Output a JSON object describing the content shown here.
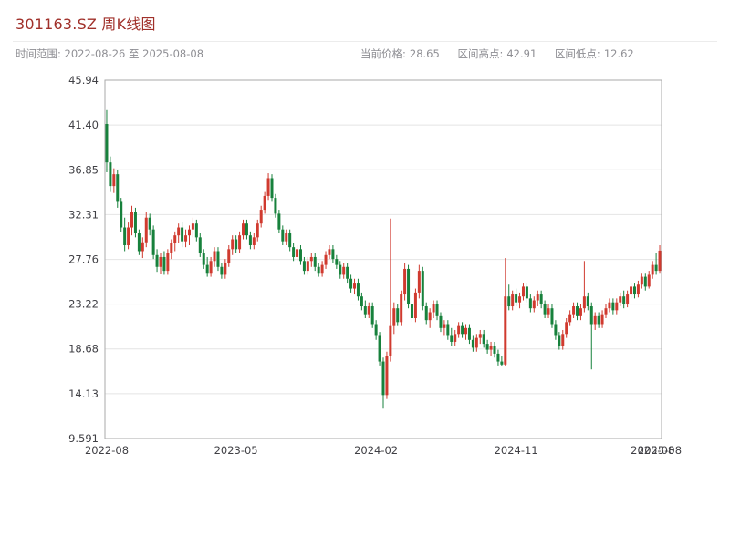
{
  "meta": {
    "title": "301163.SZ 周K线图",
    "time_range": "时间范围: 2022-08-26 至 2025-08-08",
    "stats": [
      {
        "label": "当前价格:",
        "value": "28.65"
      },
      {
        "label": "区间高点:",
        "value": "42.91"
      },
      {
        "label": "区间低点:",
        "value": "12.62"
      }
    ]
  },
  "colors": {
    "title": "#a0302a",
    "muted": "#8e8e93",
    "up": "#d03a2f",
    "down": "#17813c",
    "grid": "#e4e4e4",
    "axis_text": "#404045",
    "frame": "#aaaaaa"
  },
  "chart_data": {
    "type": "candlestick",
    "title": "301163.SZ 周K线图",
    "interval": "weekly",
    "current_price": 28.65,
    "range_high": 42.91,
    "range_low": 12.62,
    "y_ticks": [
      "45.94",
      "41.40",
      "36.85",
      "32.31",
      "27.76",
      "23.22",
      "18.68",
      "14.13",
      "9.591"
    ],
    "y_domain": [
      9.591,
      45.94
    ],
    "x_ticks": [
      {
        "label": "2022-08",
        "index": 0
      },
      {
        "label": "2023-05",
        "index": 36
      },
      {
        "label": "2024-02",
        "index": 75
      },
      {
        "label": "2024-11",
        "index": 114
      },
      {
        "label": "2025-08",
        "index": 152
      },
      {
        "label": "2025-08",
        "index": 154
      }
    ],
    "candles": [
      [
        41.5,
        42.91,
        36.6,
        37.6
      ],
      [
        37.6,
        38.2,
        34.6,
        35.2
      ],
      [
        35.2,
        37.0,
        34.5,
        36.4
      ],
      [
        36.4,
        36.8,
        33.0,
        33.6
      ],
      [
        33.6,
        34.0,
        30.5,
        31.0
      ],
      [
        31.0,
        32.0,
        28.6,
        29.2
      ],
      [
        29.2,
        31.5,
        28.8,
        31.0
      ],
      [
        31.0,
        33.2,
        30.2,
        32.6
      ],
      [
        32.6,
        33.0,
        30.0,
        30.4
      ],
      [
        30.4,
        30.8,
        28.2,
        28.6
      ],
      [
        28.6,
        30.0,
        27.9,
        29.5
      ],
      [
        29.5,
        32.6,
        29.0,
        32.0
      ],
      [
        32.0,
        32.4,
        30.2,
        30.8
      ],
      [
        30.8,
        31.2,
        27.8,
        28.2
      ],
      [
        28.2,
        28.8,
        26.5,
        27.0
      ],
      [
        27.0,
        28.4,
        26.3,
        28.0
      ],
      [
        28.0,
        28.6,
        26.2,
        26.6
      ],
      [
        26.6,
        28.8,
        26.2,
        28.4
      ],
      [
        28.4,
        29.8,
        27.8,
        29.4
      ],
      [
        29.4,
        30.6,
        28.6,
        30.2
      ],
      [
        30.2,
        31.4,
        29.4,
        31.0
      ],
      [
        31.0,
        31.6,
        29.0,
        29.6
      ],
      [
        29.6,
        30.8,
        29.0,
        30.2
      ],
      [
        30.2,
        31.2,
        29.2,
        30.8
      ],
      [
        30.8,
        32.0,
        30.0,
        31.4
      ],
      [
        31.4,
        31.8,
        29.6,
        30.0
      ],
      [
        30.0,
        30.4,
        28.0,
        28.4
      ],
      [
        28.4,
        28.8,
        26.8,
        27.2
      ],
      [
        27.2,
        28.0,
        26.0,
        26.4
      ],
      [
        26.4,
        28.0,
        26.0,
        27.6
      ],
      [
        27.6,
        29.0,
        27.0,
        28.6
      ],
      [
        28.6,
        29.0,
        26.6,
        27.0
      ],
      [
        27.0,
        27.4,
        25.8,
        26.2
      ],
      [
        26.2,
        27.8,
        25.8,
        27.4
      ],
      [
        27.4,
        29.2,
        27.0,
        28.8
      ],
      [
        28.8,
        30.2,
        28.2,
        29.8
      ],
      [
        29.8,
        30.2,
        28.4,
        28.8
      ],
      [
        28.8,
        30.6,
        28.4,
        30.2
      ],
      [
        30.2,
        31.8,
        29.8,
        31.4
      ],
      [
        31.4,
        31.8,
        29.8,
        30.2
      ],
      [
        30.2,
        30.6,
        28.8,
        29.2
      ],
      [
        29.2,
        30.4,
        28.8,
        30.0
      ],
      [
        30.0,
        31.8,
        29.6,
        31.4
      ],
      [
        31.4,
        33.2,
        31.0,
        32.8
      ],
      [
        32.8,
        34.6,
        32.4,
        34.2
      ],
      [
        34.2,
        36.5,
        33.8,
        36.0
      ],
      [
        36.0,
        36.4,
        33.6,
        34.0
      ],
      [
        34.0,
        34.4,
        32.0,
        32.4
      ],
      [
        32.4,
        32.8,
        30.4,
        30.8
      ],
      [
        30.8,
        31.2,
        29.2,
        29.6
      ],
      [
        29.6,
        30.8,
        29.2,
        30.4
      ],
      [
        30.4,
        30.8,
        28.6,
        29.0
      ],
      [
        29.0,
        29.4,
        27.6,
        28.0
      ],
      [
        28.0,
        29.2,
        27.6,
        28.8
      ],
      [
        28.8,
        29.2,
        27.2,
        27.6
      ],
      [
        27.6,
        28.0,
        26.2,
        26.6
      ],
      [
        26.6,
        28.0,
        26.2,
        27.6
      ],
      [
        27.6,
        28.4,
        27.0,
        28.0
      ],
      [
        28.0,
        28.4,
        26.6,
        27.0
      ],
      [
        27.0,
        27.4,
        26.0,
        26.4
      ],
      [
        26.4,
        27.6,
        26.0,
        27.2
      ],
      [
        27.2,
        28.6,
        26.8,
        28.2
      ],
      [
        28.2,
        29.2,
        27.8,
        28.8
      ],
      [
        28.8,
        29.2,
        27.4,
        27.8
      ],
      [
        27.8,
        28.2,
        26.8,
        27.2
      ],
      [
        27.2,
        27.6,
        25.8,
        26.2
      ],
      [
        26.2,
        27.4,
        25.8,
        27.0
      ],
      [
        27.0,
        27.4,
        25.4,
        25.8
      ],
      [
        25.8,
        26.2,
        24.4,
        24.8
      ],
      [
        24.8,
        25.8,
        24.2,
        25.4
      ],
      [
        25.4,
        25.8,
        23.6,
        24.0
      ],
      [
        24.0,
        24.4,
        22.6,
        23.0
      ],
      [
        23.0,
        23.6,
        21.8,
        22.2
      ],
      [
        22.2,
        23.4,
        21.8,
        23.0
      ],
      [
        23.0,
        23.4,
        20.8,
        21.2
      ],
      [
        21.2,
        21.6,
        19.6,
        20.0
      ],
      [
        20.0,
        20.4,
        17.0,
        17.4
      ],
      [
        17.4,
        17.8,
        12.62,
        14.0
      ],
      [
        14.0,
        18.4,
        13.6,
        18.0
      ],
      [
        18.0,
        31.9,
        17.4,
        21.0
      ],
      [
        21.0,
        23.4,
        20.2,
        22.8
      ],
      [
        22.8,
        23.2,
        21.0,
        21.4
      ],
      [
        21.4,
        24.6,
        21.0,
        24.2
      ],
      [
        24.2,
        27.4,
        23.6,
        26.8
      ],
      [
        26.8,
        27.2,
        22.8,
        23.2
      ],
      [
        23.2,
        23.6,
        21.4,
        21.8
      ],
      [
        21.8,
        24.8,
        21.4,
        24.4
      ],
      [
        24.4,
        27.2,
        23.8,
        26.6
      ],
      [
        26.6,
        27.0,
        22.6,
        23.0
      ],
      [
        23.0,
        23.4,
        21.2,
        21.6
      ],
      [
        21.6,
        22.8,
        20.8,
        22.4
      ],
      [
        22.4,
        23.6,
        21.8,
        23.2
      ],
      [
        23.2,
        23.6,
        21.6,
        22.0
      ],
      [
        22.0,
        22.4,
        20.4,
        20.8
      ],
      [
        20.8,
        21.6,
        20.0,
        21.2
      ],
      [
        21.2,
        21.6,
        19.6,
        20.0
      ],
      [
        20.0,
        20.8,
        19.0,
        19.4
      ],
      [
        19.4,
        20.6,
        19.0,
        20.2
      ],
      [
        20.2,
        21.4,
        19.8,
        21.0
      ],
      [
        21.0,
        21.4,
        19.8,
        20.2
      ],
      [
        20.2,
        21.2,
        19.6,
        20.8
      ],
      [
        20.8,
        21.2,
        19.2,
        19.6
      ],
      [
        19.6,
        20.0,
        18.4,
        18.8
      ],
      [
        18.8,
        20.2,
        18.4,
        19.8
      ],
      [
        19.8,
        20.6,
        19.2,
        20.2
      ],
      [
        20.2,
        20.6,
        18.8,
        19.2
      ],
      [
        19.2,
        19.6,
        18.2,
        18.6
      ],
      [
        18.6,
        19.4,
        18.0,
        19.0
      ],
      [
        19.0,
        19.4,
        17.8,
        18.2
      ],
      [
        18.2,
        18.6,
        17.0,
        17.4
      ],
      [
        17.4,
        18.0,
        16.9,
        17.1
      ],
      [
        17.1,
        27.9,
        16.9,
        24.0
      ],
      [
        24.0,
        25.2,
        22.6,
        23.0
      ],
      [
        23.0,
        24.6,
        22.6,
        24.2
      ],
      [
        24.2,
        24.8,
        23.0,
        23.4
      ],
      [
        23.4,
        24.4,
        22.8,
        24.0
      ],
      [
        24.0,
        25.4,
        23.6,
        25.0
      ],
      [
        25.0,
        25.4,
        23.4,
        23.8
      ],
      [
        23.8,
        24.2,
        22.4,
        22.8
      ],
      [
        22.8,
        24.0,
        22.4,
        23.6
      ],
      [
        23.6,
        24.6,
        23.0,
        24.2
      ],
      [
        24.2,
        24.6,
        22.8,
        23.2
      ],
      [
        23.2,
        23.6,
        21.8,
        22.2
      ],
      [
        22.2,
        23.2,
        21.8,
        22.8
      ],
      [
        22.8,
        23.2,
        20.8,
        21.2
      ],
      [
        21.2,
        21.6,
        19.6,
        20.0
      ],
      [
        20.0,
        20.4,
        18.6,
        19.0
      ],
      [
        19.0,
        20.6,
        18.6,
        20.2
      ],
      [
        20.2,
        21.8,
        19.8,
        21.4
      ],
      [
        21.4,
        22.6,
        21.0,
        22.2
      ],
      [
        22.2,
        23.4,
        21.8,
        23.0
      ],
      [
        23.0,
        23.4,
        21.6,
        22.0
      ],
      [
        22.0,
        23.2,
        21.6,
        22.8
      ],
      [
        22.8,
        27.6,
        22.4,
        24.0
      ],
      [
        24.0,
        24.4,
        22.6,
        23.0
      ],
      [
        23.0,
        23.4,
        16.6,
        21.2
      ],
      [
        21.2,
        22.4,
        20.6,
        22.0
      ],
      [
        22.0,
        22.4,
        20.8,
        21.2
      ],
      [
        21.2,
        22.6,
        20.8,
        22.2
      ],
      [
        22.2,
        23.2,
        21.8,
        22.8
      ],
      [
        22.8,
        23.8,
        22.4,
        23.4
      ],
      [
        23.4,
        23.8,
        22.2,
        22.6
      ],
      [
        22.6,
        23.8,
        22.2,
        23.4
      ],
      [
        23.4,
        24.4,
        23.0,
        24.0
      ],
      [
        24.0,
        24.6,
        22.8,
        23.2
      ],
      [
        23.2,
        24.6,
        22.9,
        24.2
      ],
      [
        24.2,
        25.4,
        23.8,
        25.0
      ],
      [
        25.0,
        25.4,
        23.8,
        24.2
      ],
      [
        24.2,
        25.6,
        23.9,
        25.2
      ],
      [
        25.2,
        26.4,
        24.8,
        26.0
      ],
      [
        26.0,
        26.4,
        24.6,
        25.0
      ],
      [
        25.0,
        26.6,
        24.8,
        26.2
      ],
      [
        26.2,
        27.6,
        25.8,
        27.2
      ],
      [
        27.2,
        28.4,
        26.2,
        26.6
      ],
      [
        26.6,
        29.2,
        26.4,
        28.65
      ]
    ]
  }
}
